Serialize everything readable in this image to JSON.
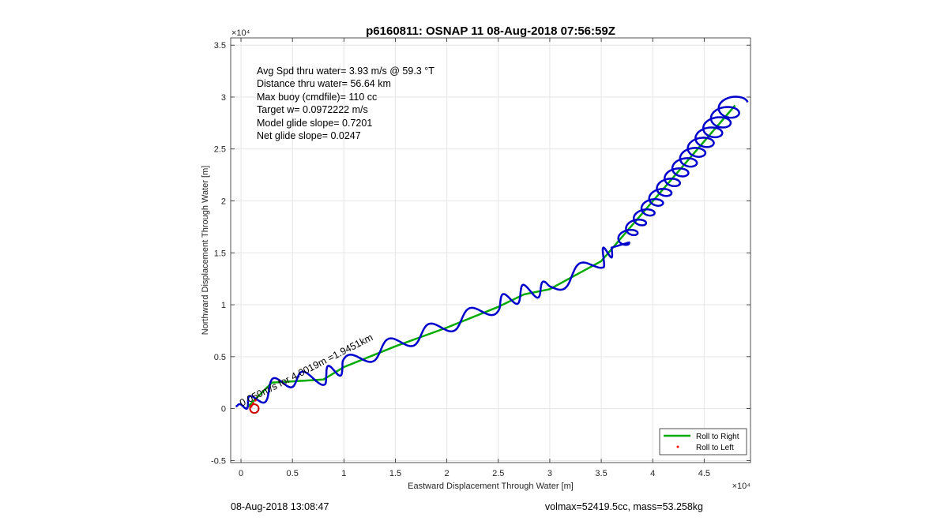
{
  "chart_data": {
    "type": "line",
    "title": "p6160811: OSNAP 11 08-Aug-2018 07:56:59Z",
    "xlabel": "Eastward Displacement Through Water [m]",
    "ylabel": "Northward Displacement Through Water [m]",
    "x_exponent_label": "×10⁴",
    "y_exponent_label": "×10⁴",
    "xlim": [
      -0.1,
      4.95
    ],
    "ylim": [
      -0.52,
      3.57
    ],
    "xticks": [
      0,
      0.5,
      1,
      1.5,
      2,
      2.5,
      3,
      3.5,
      4,
      4.5
    ],
    "yticks": [
      -0.5,
      0,
      0.5,
      1,
      1.5,
      2,
      2.5,
      3,
      3.5
    ],
    "xtick_labels": [
      "0",
      "0.5",
      "1",
      "1.5",
      "2",
      "2.5",
      "3",
      "3.5",
      "4",
      "4.5"
    ],
    "ytick_labels": [
      "-0.5",
      "0",
      "0.5",
      "1",
      "1.5",
      "2",
      "2.5",
      "3",
      "3.5"
    ],
    "grid": true,
    "legend_position": "bottom-right",
    "series": [
      {
        "name": "Roll to Right",
        "color": "#00aa00",
        "x": [
          0.05,
          0.3,
          0.8,
          1.0,
          1.5,
          2.0,
          2.5,
          2.75,
          3.0,
          3.5,
          4.8
        ],
        "y": [
          0.0,
          0.25,
          0.28,
          0.4,
          0.6,
          0.78,
          0.98,
          1.1,
          1.15,
          1.42,
          2.92
        ]
      },
      {
        "name": "Roll to Left",
        "color": "#ff0000",
        "marker": "dot",
        "x": [
          0.1,
          0.12,
          0.14
        ],
        "y": [
          0.02,
          0.05,
          0.08
        ]
      }
    ],
    "track": {
      "color": "#0000cc",
      "baseline_x": [
        -0.05,
        0.1,
        0.4,
        0.8,
        1.0,
        1.5,
        2.0,
        2.5,
        2.75,
        3.0,
        3.5,
        3.6
      ],
      "baseline_y": [
        0.02,
        0.05,
        0.27,
        0.3,
        0.42,
        0.62,
        0.8,
        1.0,
        1.12,
        1.16,
        1.43,
        1.55
      ],
      "oscillations": 14,
      "amplitude": 0.07,
      "northeast_start": [
        3.7,
        1.6
      ],
      "northeast_end": [
        4.8,
        2.95
      ],
      "northeast_loops": 14,
      "northeast_amplitude": 0.12
    },
    "circle_marker": {
      "x": 0.13,
      "y": 0.0,
      "color": "#cc0000"
    },
    "annotations": {
      "stats": [
        "Avg Spd thru water=  3.93 m/s @  59.3 °T",
        "Distance thru water= 56.64 km",
        "Max buoy (cmdfile)= 110 cc",
        "Target w= 0.0972222 m/s",
        "Model glide slope= 0.7201",
        "Net glide slope= 0.0247"
      ],
      "diagonal": "0.050m/s for 4.0019m =1.9451km"
    }
  },
  "footer": {
    "left": "08-Aug-2018 13:08:47",
    "right": "volmax=52419.5cc, mass=53.258kg"
  }
}
